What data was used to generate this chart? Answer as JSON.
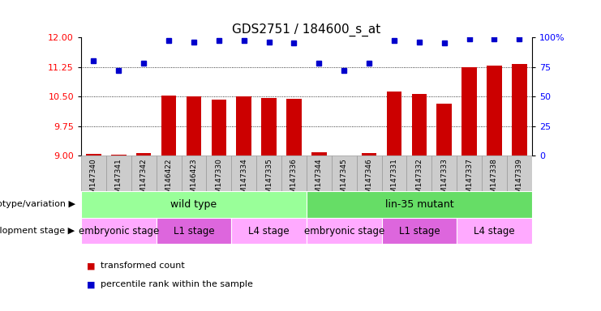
{
  "title": "GDS2751 / 184600_s_at",
  "samples": [
    "GSM147340",
    "GSM147341",
    "GSM147342",
    "GSM146422",
    "GSM146423",
    "GSM147330",
    "GSM147334",
    "GSM147335",
    "GSM147336",
    "GSM147344",
    "GSM147345",
    "GSM147346",
    "GSM147331",
    "GSM147332",
    "GSM147333",
    "GSM147337",
    "GSM147338",
    "GSM147339"
  ],
  "bar_values": [
    9.05,
    9.02,
    9.07,
    10.52,
    10.5,
    10.42,
    10.5,
    10.45,
    10.43,
    9.08,
    9.01,
    9.07,
    10.62,
    10.57,
    10.32,
    11.25,
    11.28,
    11.32
  ],
  "dot_values": [
    80,
    72,
    78,
    97,
    96,
    97,
    97,
    96,
    95,
    78,
    72,
    78,
    97,
    96,
    95,
    99,
    99,
    99
  ],
  "ylim": [
    9,
    12
  ],
  "y_ticks": [
    9,
    9.75,
    10.5,
    11.25,
    12
  ],
  "y2_ticks": [
    0,
    25,
    50,
    75,
    100
  ],
  "bar_color": "#CC0000",
  "dot_color": "#0000CC",
  "grid_lines": [
    9.75,
    10.5,
    11.25
  ],
  "genotype_labels": [
    {
      "label": "wild type",
      "start": 0,
      "end": 9,
      "color": "#99FF99"
    },
    {
      "label": "lin-35 mutant",
      "start": 9,
      "end": 18,
      "color": "#66DD66"
    }
  ],
  "stage_labels": [
    {
      "label": "embryonic stage",
      "start": 0,
      "end": 3,
      "color": "#FFAAFF"
    },
    {
      "label": "L1 stage",
      "start": 3,
      "end": 6,
      "color": "#DD66DD"
    },
    {
      "label": "L4 stage",
      "start": 6,
      "end": 9,
      "color": "#FFAAFF"
    },
    {
      "label": "embryonic stage",
      "start": 9,
      "end": 12,
      "color": "#FFAAFF"
    },
    {
      "label": "L1 stage",
      "start": 12,
      "end": 15,
      "color": "#DD66DD"
    },
    {
      "label": "L4 stage",
      "start": 15,
      "end": 18,
      "color": "#FFAAFF"
    }
  ],
  "legend_bar_label": "transformed count",
  "legend_dot_label": "percentile rank within the sample",
  "genotype_row_label": "genotype/variation",
  "stage_row_label": "development stage",
  "bar_width": 0.6,
  "tick_bg_color": "#CCCCCC",
  "tick_border_color": "#999999"
}
